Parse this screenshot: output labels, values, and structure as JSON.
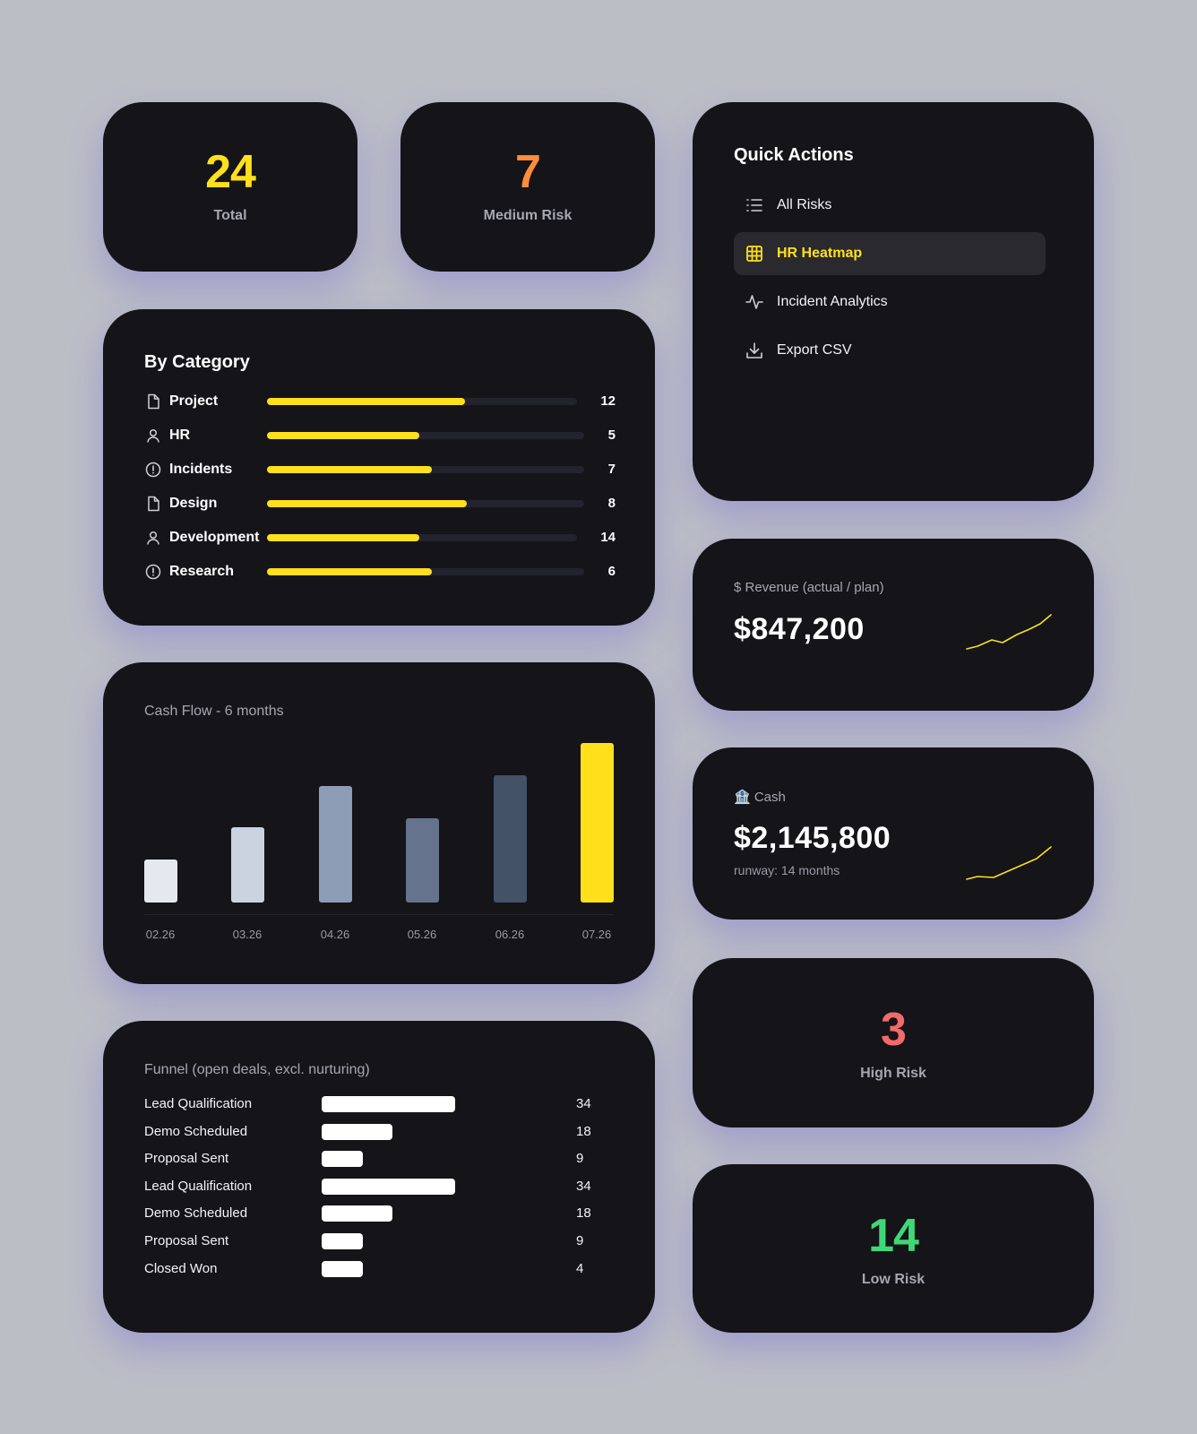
{
  "stats": {
    "total": {
      "value": "24",
      "label": "Total",
      "color": "#ffe01b"
    },
    "medium": {
      "value": "7",
      "label": "Medium Risk",
      "color": "#ff8c3a"
    },
    "high": {
      "value": "3",
      "label": "High Risk",
      "color": "#f26a6a"
    },
    "low": {
      "value": "14",
      "label": "Low Risk",
      "color": "#3fd877"
    }
  },
  "by_category": {
    "title": "By Category",
    "items": [
      {
        "name": "Project",
        "icon": "file-icon",
        "value": "12",
        "fill": 0.64
      },
      {
        "name": "HR",
        "icon": "user-icon",
        "value": "5",
        "fill": 0.48
      },
      {
        "name": "Incidents",
        "icon": "alert-circle-icon",
        "value": "7",
        "fill": 0.52
      },
      {
        "name": "Design",
        "icon": "file-icon",
        "value": "8",
        "fill": 0.63
      },
      {
        "name": "Development",
        "icon": "user-icon",
        "value": "14",
        "fill": 0.49
      },
      {
        "name": "Research",
        "icon": "alert-circle-icon",
        "value": "6",
        "fill": 0.52
      }
    ]
  },
  "quick_actions": {
    "title": "Quick Actions",
    "items": [
      {
        "label": "All Risks",
        "icon": "list-icon",
        "active": false
      },
      {
        "label": "HR Heatmap",
        "icon": "grid-icon",
        "active": true
      },
      {
        "label": "Incident Analytics",
        "icon": "activity-icon",
        "active": false
      },
      {
        "label": "Export CSV",
        "icon": "download-icon",
        "active": false
      }
    ]
  },
  "revenue": {
    "label": "$ Revenue (actual / plan)",
    "value": "$847,200"
  },
  "cash": {
    "label": "🏦 Cash",
    "value": "$2,145,800",
    "sub": "runway: 14 months"
  },
  "chart_data": [
    {
      "type": "bar",
      "title": "Cash Flow - 6 months",
      "categories": [
        "02.26",
        "03.26",
        "04.26",
        "05.26",
        "06.26",
        "07.26"
      ],
      "values": [
        27,
        47,
        73,
        53,
        80,
        100
      ],
      "colors": [
        "#e5e8ef",
        "#cbd3e0",
        "#8e9db6",
        "#65748c",
        "#435266",
        "#ffe01b"
      ]
    },
    {
      "type": "bar",
      "title": "Funnel (open deals, excl. nurturing)",
      "orientation": "horizontal",
      "categories": [
        "Lead Qualification",
        "Demo Scheduled",
        "Proposal Sent",
        "Lead Qualification",
        "Demo Scheduled",
        "Proposal Sent",
        "Closed Won"
      ],
      "values": [
        34,
        18,
        9,
        34,
        18,
        9,
        4
      ]
    }
  ]
}
